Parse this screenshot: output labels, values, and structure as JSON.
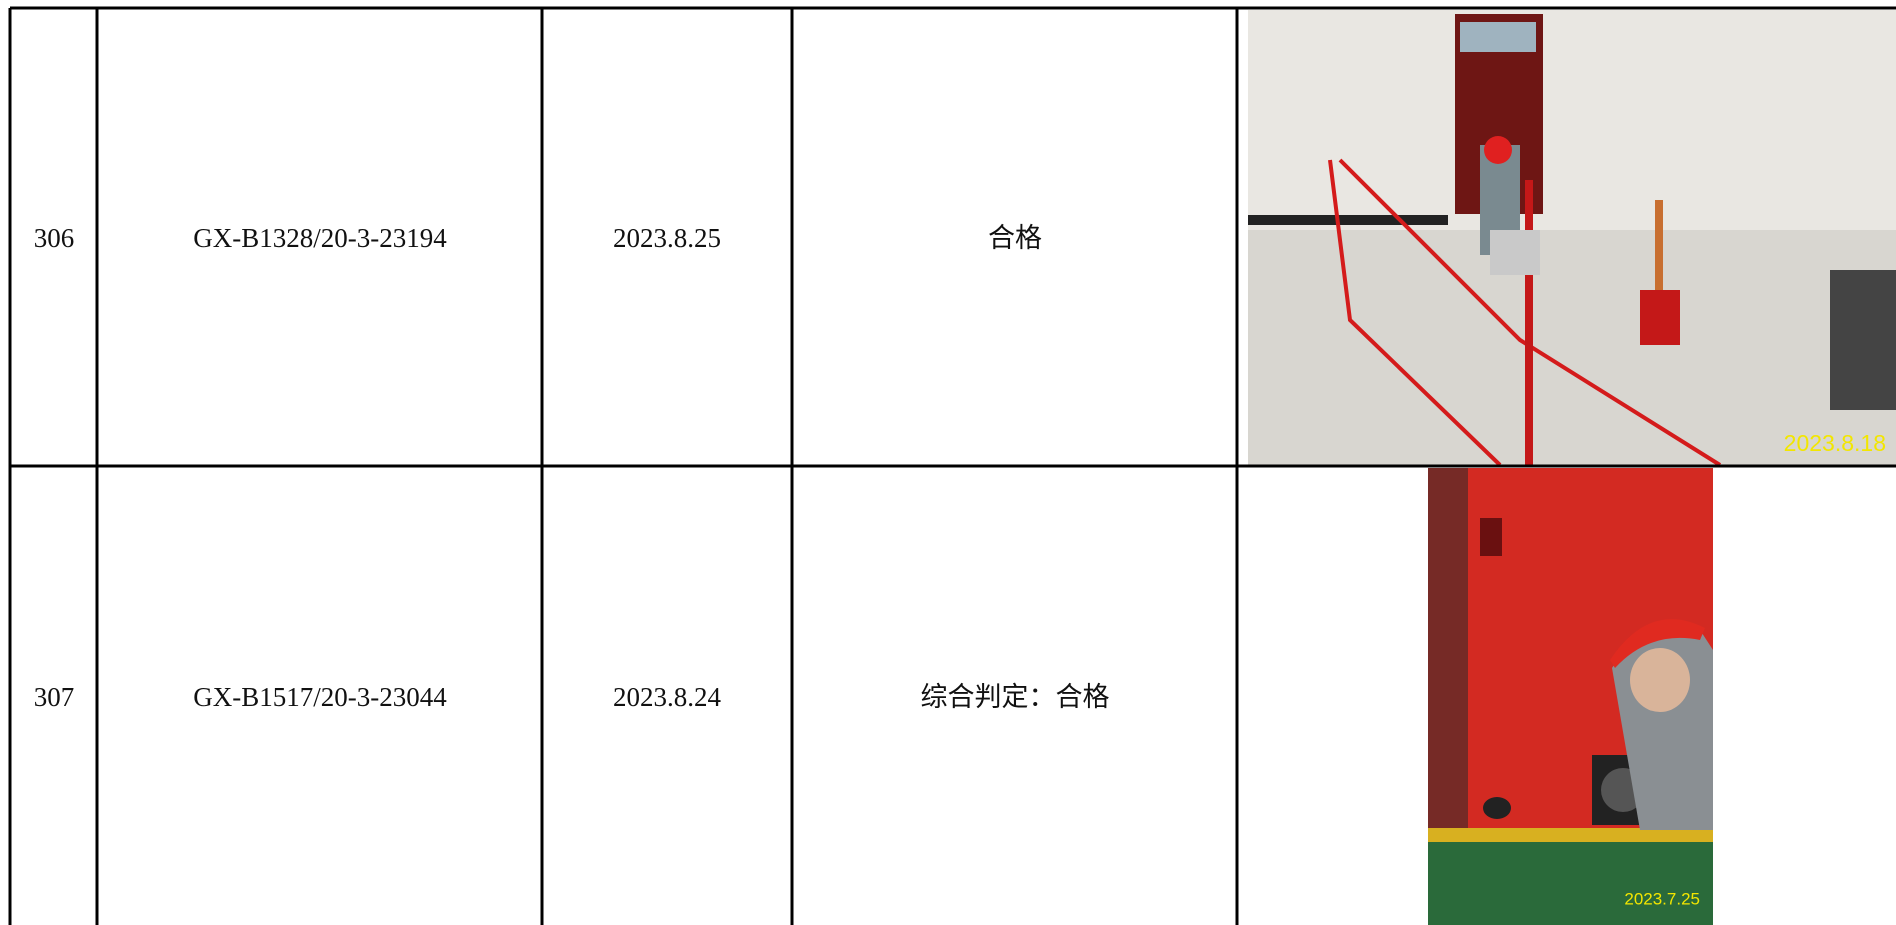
{
  "table": {
    "rows": [
      [
        "306",
        "GX-B1328/20-3-23194",
        "2023.8.25",
        "合格",
        "2023.8.18"
      ],
      [
        "307",
        "GX-B1517/20-3-23044",
        "2023.8.24",
        "综合判定：合格",
        "2023.7.25"
      ]
    ]
  }
}
